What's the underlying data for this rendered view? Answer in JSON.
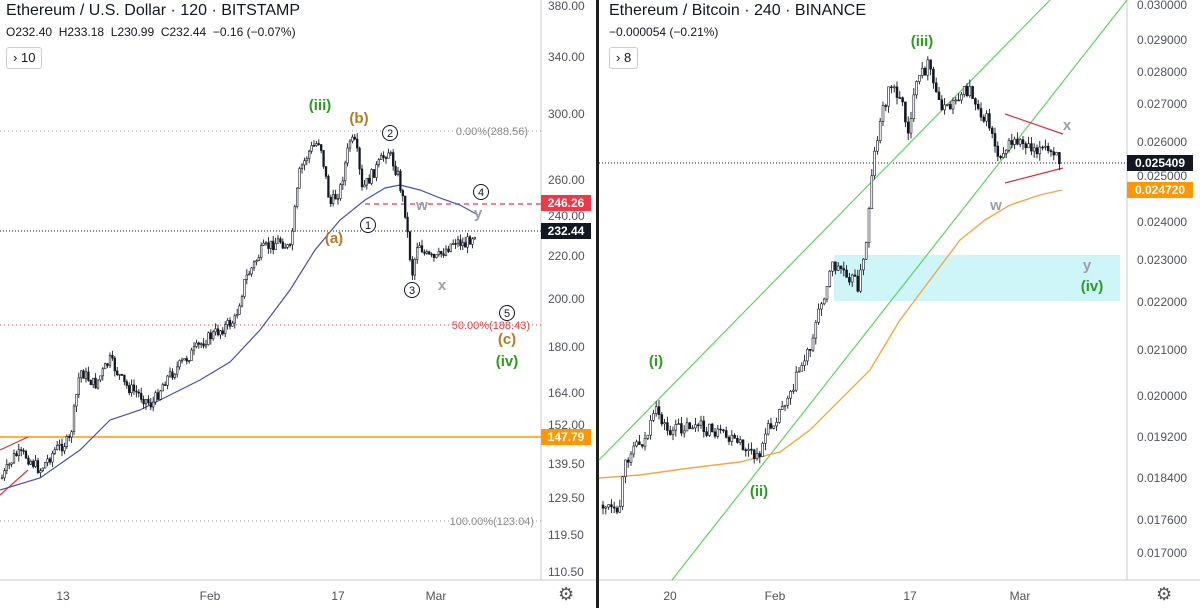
{
  "chart_data": [
    {
      "type": "candlestick",
      "title": "Ethereum / U.S. Dollar",
      "interval": "120",
      "exchange": "BITSTAMP",
      "ohlc": {
        "open": "O232.40",
        "high": "H233.18",
        "low": "L230.99",
        "close": "C232.44",
        "change": "−0.16 (−0.07%)"
      },
      "indicator_toggle": "10",
      "y_ticks": [
        "380.00",
        "340.00",
        "300.00",
        "260.00",
        "240.00",
        "220.00",
        "200.00",
        "180.00",
        "164.00",
        "152.00",
        "139.50",
        "129.50",
        "119.50",
        "110.50"
      ],
      "x_ticks": [
        "13",
        "Feb",
        "17",
        "Mar"
      ],
      "price_tags": [
        {
          "value": "246.26",
          "color": "#f23645"
        },
        {
          "value": "232.44",
          "color": "#131722"
        },
        {
          "value": "147.79",
          "color": "#ff9800"
        }
      ],
      "fib_labels": [
        "0.00%(288.56)",
        "50.00%(188.43)",
        "100.00%(123.04)"
      ],
      "wave_labels": [
        "(iii)",
        "(b)",
        "(a)",
        "(c)",
        "(iv)",
        "w",
        "y",
        "x",
        "1",
        "2",
        "3",
        "4",
        "5"
      ]
    },
    {
      "type": "candlestick",
      "title": "Ethereum / Bitcoin",
      "interval": "240",
      "exchange": "BINANCE",
      "change": "−0.000054 (−0.21%)",
      "indicator_toggle": "8",
      "y_ticks": [
        "0.030000",
        "0.029000",
        "0.028000",
        "0.027000",
        "0.026000",
        "0.025000",
        "0.024000",
        "0.023000",
        "0.022000",
        "0.021000",
        "0.020000",
        "0.019200",
        "0.018400",
        "0.017600",
        "0.017000"
      ],
      "x_ticks": [
        "20",
        "Feb",
        "17",
        "Mar"
      ],
      "price_tags": [
        {
          "value": "0.025409",
          "color": "#131722"
        },
        {
          "value": "0.024720",
          "color": "#ff9800"
        }
      ],
      "wave_labels": [
        "(i)",
        "(ii)",
        "(iii)",
        "(iv)",
        "w",
        "x",
        "y"
      ]
    }
  ],
  "colors": {
    "candle": "#131722",
    "ma_left": "#4a4fa8",
    "ma_right": "#f5a742",
    "channel": "#5fd35f",
    "fib": "#999999",
    "fib_50": "#e04040",
    "resistance": "#f23645",
    "support_line": "#ff9800",
    "zone": "#c6f3f6",
    "wave_green": "#2a9d1f",
    "wave_orange": "#b87a1e",
    "wave_gray": "#9aa0a8"
  },
  "icons": {
    "settings": "gear-icon",
    "expand": "chevron-right-icon"
  }
}
